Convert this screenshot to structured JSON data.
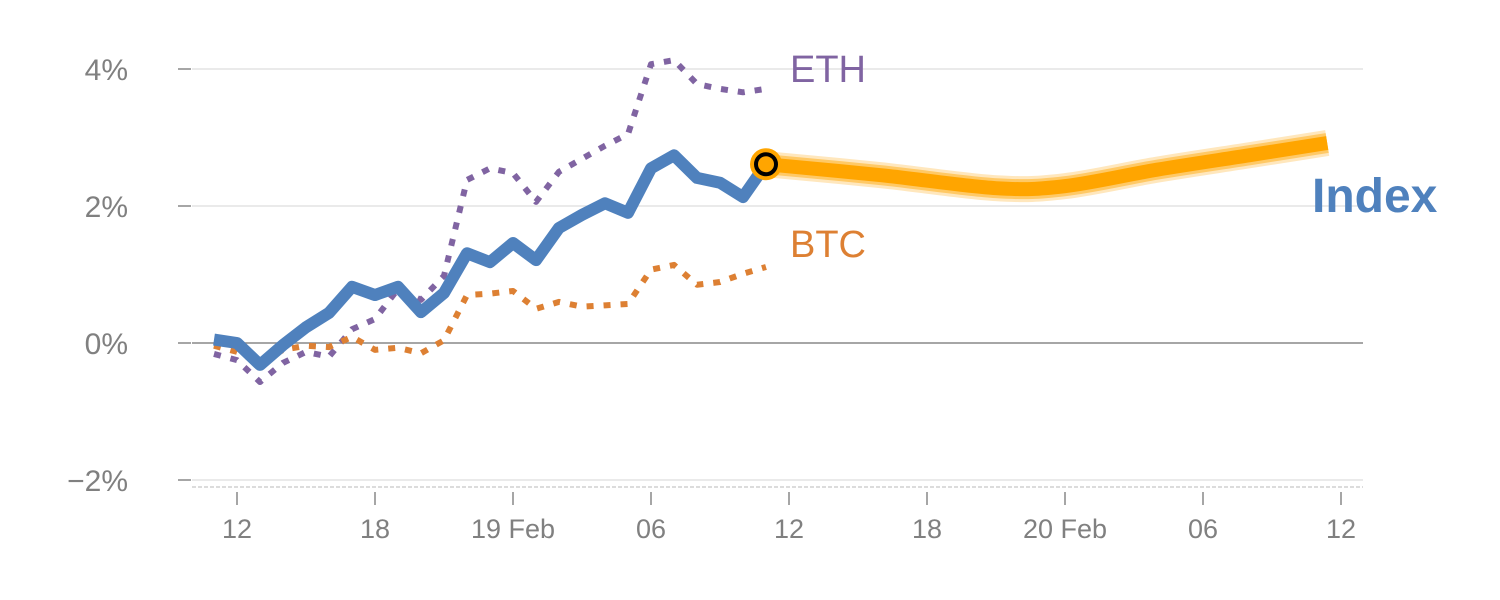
{
  "chart_data": {
    "type": "line",
    "title": "",
    "xlabel": "",
    "ylabel": "",
    "ylim": [
      -2,
      4
    ],
    "yticks": [
      {
        "value": 4,
        "label": "4%"
      },
      {
        "value": 2,
        "label": "2%"
      },
      {
        "value": 0,
        "label": "0%"
      },
      {
        "value": -2,
        "label": "−2%"
      }
    ],
    "x_unit": "hours since 18 Feb 00:00",
    "xlim": [
      9.5,
      60.5
    ],
    "xticks": [
      {
        "value": 12,
        "label": "12"
      },
      {
        "value": 18,
        "label": "18"
      },
      {
        "value": 24,
        "label": "19 Feb"
      },
      {
        "value": 30,
        "label": "06"
      },
      {
        "value": 36,
        "label": "12"
      },
      {
        "value": 42,
        "label": "18"
      },
      {
        "value": 48,
        "label": "20 Feb"
      },
      {
        "value": 54,
        "label": "06"
      },
      {
        "value": 60,
        "label": "12"
      }
    ],
    "grid": true,
    "series": [
      {
        "name": "ETH",
        "label": "ETH",
        "color": "#8064a2",
        "style": "dotted",
        "x": [
          11,
          12,
          13,
          14,
          15,
          16,
          17,
          18,
          19,
          20,
          21,
          22,
          23,
          24,
          25,
          26,
          27,
          28,
          29,
          30,
          31,
          32,
          33,
          34,
          35
        ],
        "values": [
          -0.16,
          -0.25,
          -0.57,
          -0.29,
          -0.13,
          -0.2,
          0.2,
          0.35,
          0.79,
          0.63,
          0.98,
          2.38,
          2.55,
          2.48,
          2.06,
          2.5,
          2.69,
          2.88,
          3.05,
          4.07,
          4.13,
          3.78,
          3.71,
          3.66,
          3.71
        ]
      },
      {
        "name": "BTC",
        "label": "BTC",
        "color": "#dd8033",
        "style": "dotted",
        "x": [
          11,
          12,
          13,
          14,
          15,
          16,
          17,
          18,
          19,
          20,
          21,
          22,
          23,
          24,
          25,
          26,
          27,
          28,
          29,
          30,
          31,
          32,
          33,
          34,
          35
        ],
        "values": [
          -0.04,
          -0.13,
          -0.29,
          -0.1,
          -0.04,
          -0.06,
          0.09,
          -0.1,
          -0.07,
          -0.15,
          0.04,
          0.7,
          0.72,
          0.76,
          0.5,
          0.6,
          0.53,
          0.55,
          0.57,
          1.07,
          1.14,
          0.85,
          0.89,
          1.01,
          1.11
        ]
      },
      {
        "name": "Index",
        "label": "Index",
        "color": "#4f81bd",
        "style": "solid",
        "x": [
          11,
          12,
          13,
          14,
          15,
          16,
          17,
          18,
          19,
          20,
          21,
          22,
          23,
          24,
          25,
          26,
          27,
          28,
          29,
          30,
          31,
          32,
          33,
          34,
          35
        ],
        "values": [
          0.05,
          0,
          -0.32,
          -0.03,
          0.23,
          0.44,
          0.82,
          0.7,
          0.82,
          0.45,
          0.73,
          1.31,
          1.18,
          1.46,
          1.21,
          1.68,
          1.87,
          2.04,
          1.9,
          2.55,
          2.74,
          2.41,
          2.34,
          2.13,
          2.61
        ]
      },
      {
        "name": "Index forecast",
        "color": "#ffa500",
        "style": "thick-band",
        "x": [
          35,
          40,
          45,
          48,
          52,
          56,
          59.4
        ],
        "values": [
          2.61,
          2.45,
          2.26,
          2.29,
          2.53,
          2.74,
          2.92
        ]
      }
    ],
    "marker": {
      "series": "Index",
      "x": 35,
      "value": 2.61,
      "fill": "#ffa500",
      "stroke": "#000000"
    }
  }
}
